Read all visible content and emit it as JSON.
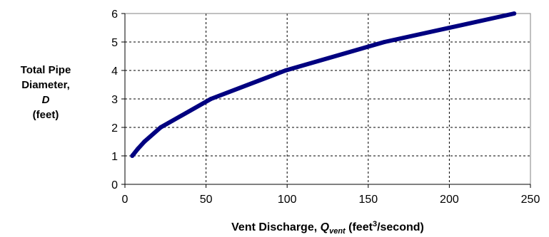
{
  "chart_data": {
    "type": "line",
    "ylabel_lines": [
      "Total Pipe",
      "Diameter,",
      "D",
      "(feet)"
    ],
    "xlabel": {
      "prefix": "Vent Discharge, ",
      "q": "Q",
      "q_sub": "vent",
      "mid": " (feet",
      "sup": "3",
      "suffix": "/second)"
    },
    "xlim": [
      0,
      250
    ],
    "ylim": [
      0,
      6
    ],
    "x_ticks": [
      "0",
      "50",
      "100",
      "150",
      "200",
      "250"
    ],
    "y_ticks": [
      "0",
      "1",
      "2",
      "3",
      "4",
      "5",
      "6"
    ],
    "grid": true,
    "grid_style": "dashed",
    "series": [
      {
        "color": "#000080",
        "x": [
          4.5,
          8,
          12,
          22,
          53,
          99,
          160,
          240
        ],
        "y": [
          1.0,
          1.25,
          1.5,
          2.0,
          3.0,
          4.0,
          5.0,
          6.0
        ]
      }
    ]
  }
}
